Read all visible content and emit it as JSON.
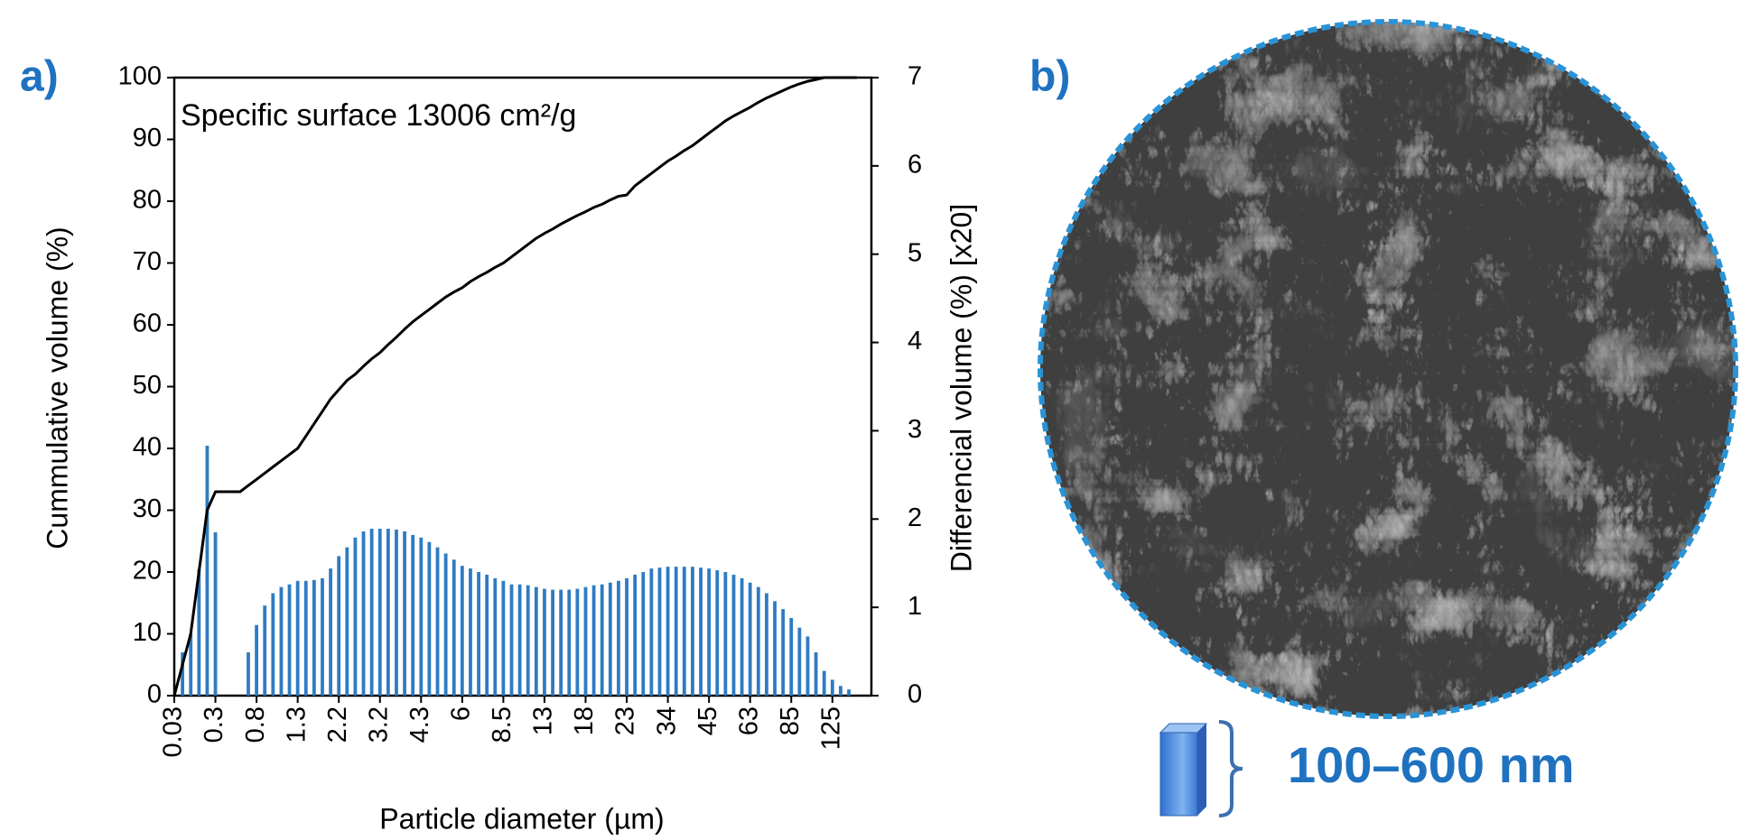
{
  "panel_labels": [
    "a)",
    "b)"
  ],
  "scale_label": "100–600 nm",
  "chart_data": {
    "type": "combo",
    "annotation": "Specific surface 13006 cm²/g",
    "x_label": "Particle diameter (µm)",
    "y_label": "Cummulative  volume  (%)",
    "y2_label": "Differencial volume  (%) [x20]",
    "categories": [
      "0.03",
      null,
      null,
      null,
      null,
      "0.3",
      null,
      null,
      null,
      null,
      "0.8",
      null,
      null,
      null,
      null,
      "1.3",
      null,
      null,
      null,
      null,
      "2.2",
      null,
      null,
      null,
      null,
      "3.2",
      null,
      null,
      null,
      null,
      "4.3",
      null,
      null,
      null,
      null,
      "6",
      null,
      null,
      null,
      null,
      "8.5",
      null,
      null,
      null,
      null,
      "13",
      null,
      null,
      null,
      null,
      "18",
      null,
      null,
      null,
      null,
      "23",
      null,
      null,
      null,
      null,
      "34",
      null,
      null,
      null,
      null,
      "45",
      null,
      null,
      null,
      null,
      "63",
      null,
      null,
      null,
      null,
      "85",
      null,
      null,
      null,
      null,
      "125",
      null,
      null,
      null
    ],
    "ylim": [
      0,
      100
    ],
    "yticks": [
      0,
      10,
      20,
      30,
      40,
      50,
      60,
      70,
      80,
      90,
      100
    ],
    "y2lim": [
      0,
      7
    ],
    "y2ticks": [
      0,
      1,
      2,
      3,
      4,
      5,
      6,
      7
    ],
    "grid": false,
    "series": [
      {
        "type": "bar",
        "axis": "y2",
        "color": "#2e7bc4",
        "values": [
          null,
          0.49,
          0.7,
          1.43,
          2.83,
          1.85,
          null,
          null,
          null,
          0.49,
          0.8,
          1.02,
          1.16,
          1.23,
          1.26,
          1.3,
          1.3,
          1.31,
          1.33,
          1.44,
          1.58,
          1.68,
          1.79,
          1.86,
          1.89,
          1.89,
          1.89,
          1.88,
          1.86,
          1.82,
          1.79,
          1.74,
          1.68,
          1.61,
          1.54,
          1.47,
          1.44,
          1.4,
          1.37,
          1.33,
          1.3,
          1.26,
          1.26,
          1.25,
          1.23,
          1.21,
          1.2,
          1.2,
          1.2,
          1.21,
          1.23,
          1.25,
          1.26,
          1.28,
          1.3,
          1.33,
          1.37,
          1.4,
          1.44,
          1.45,
          1.46,
          1.46,
          1.46,
          1.46,
          1.45,
          1.44,
          1.42,
          1.4,
          1.37,
          1.33,
          1.28,
          1.23,
          1.16,
          1.07,
          0.98,
          0.88,
          0.77,
          0.67,
          0.49,
          0.28,
          0.18,
          0.11,
          0.07,
          null
        ]
      },
      {
        "type": "line",
        "color": "#000000",
        "values": [
          0,
          5,
          10,
          20,
          30,
          33,
          33,
          33,
          33,
          34,
          35,
          36,
          37,
          38,
          39,
          40,
          42,
          44,
          46,
          48,
          49.5,
          51,
          52,
          53.3,
          54.5,
          55.5,
          56.8,
          58,
          59.3,
          60.5,
          61.5,
          62.5,
          63.5,
          64.5,
          65.3,
          66,
          67,
          67.8,
          68.5,
          69.3,
          70,
          71,
          72,
          73,
          74,
          74.8,
          75.5,
          76.3,
          77,
          77.7,
          78.3,
          79,
          79.5,
          80.2,
          80.8,
          81,
          82.5,
          83.5,
          84.5,
          85.5,
          86.5,
          87.3,
          88.2,
          89,
          90,
          91,
          92,
          93,
          93.8,
          94.5,
          95.2,
          96,
          96.7,
          97.3,
          97.9,
          98.5,
          99,
          99.4,
          99.7,
          100,
          100,
          100,
          100,
          100
        ]
      }
    ]
  }
}
